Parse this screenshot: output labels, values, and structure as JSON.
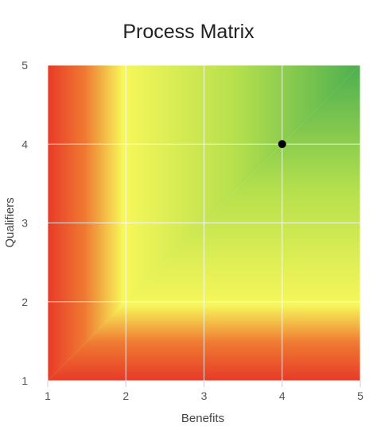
{
  "chart_data": {
    "type": "scatter",
    "title": "Process Matrix",
    "xlabel": "Benefits",
    "ylabel": "Qualifiers",
    "xlim": [
      1,
      5
    ],
    "ylim": [
      1,
      5
    ],
    "xticks": [
      "1",
      "2",
      "3",
      "4",
      "5"
    ],
    "yticks": [
      "1",
      "2",
      "3",
      "4",
      "5"
    ],
    "grid": true,
    "background": "red-yellow-green gradient rising toward upper right",
    "colors": {
      "low": "#e83a27",
      "mid": "#f7f75a",
      "high": "#4caf50",
      "point": "#000000",
      "grid": "#ffffff"
    },
    "points": [
      {
        "x": 4,
        "y": 4
      }
    ]
  }
}
